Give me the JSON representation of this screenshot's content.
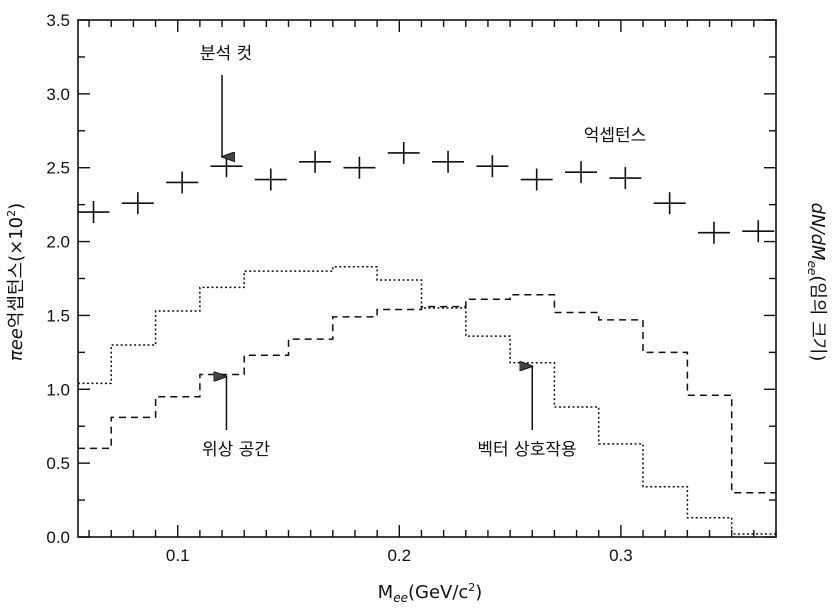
{
  "chart_data": {
    "type": "line",
    "title": "",
    "xlabel": "M",
    "xlabel_sub": "ee",
    "xlabel_unit": "(GeV/c",
    "xlabel_unit_sup": "2",
    "xlabel_unit_close": ")",
    "ylabel_left": {
      "pi": "π",
      "ee": "ee",
      "kr": "억셉턴스(×10",
      "sup": "2",
      "close": ")"
    },
    "ylabel_right": {
      "a": "dN/dM",
      "sub": "ee",
      "b": "(임의 크기)"
    },
    "xlim": [
      0.055,
      0.37
    ],
    "ylim": [
      0.0,
      3.5
    ],
    "xticks": [
      0.1,
      0.2,
      0.3
    ],
    "xtick_labels": [
      "0.1",
      "0.2",
      "0.3"
    ],
    "yticks": [
      0.0,
      0.5,
      1.0,
      1.5,
      2.0,
      2.5,
      3.0,
      3.5
    ],
    "ytick_labels": [
      "0.0",
      "0.5",
      "1.0",
      "1.5",
      "2.0",
      "2.5",
      "3.0",
      "3.5"
    ],
    "series": [
      {
        "name": "억셉턴스",
        "style": "crosses",
        "x": [
          0.062,
          0.082,
          0.102,
          0.122,
          0.142,
          0.162,
          0.182,
          0.202,
          0.222,
          0.242,
          0.262,
          0.282,
          0.302,
          0.322,
          0.342,
          0.362
        ],
        "y": [
          2.2,
          2.26,
          2.4,
          2.51,
          2.42,
          2.54,
          2.5,
          2.6,
          2.54,
          2.51,
          2.42,
          2.47,
          2.43,
          2.26,
          2.06,
          2.07
        ]
      },
      {
        "name": "위상 공간",
        "style": "dotted-step",
        "edges": [
          0.055,
          0.07,
          0.09,
          0.11,
          0.13,
          0.15,
          0.17,
          0.19,
          0.21,
          0.23,
          0.25,
          0.27,
          0.29,
          0.31,
          0.33,
          0.35,
          0.37
        ],
        "values": [
          1.04,
          1.3,
          1.53,
          1.69,
          1.8,
          1.8,
          1.83,
          1.74,
          1.55,
          1.36,
          1.18,
          0.88,
          0.63,
          0.34,
          0.13,
          0.02
        ]
      },
      {
        "name": "벡터 상호작용",
        "style": "dashed-step",
        "edges": [
          0.055,
          0.07,
          0.09,
          0.11,
          0.13,
          0.15,
          0.17,
          0.19,
          0.21,
          0.23,
          0.25,
          0.27,
          0.29,
          0.31,
          0.33,
          0.35,
          0.37
        ],
        "values": [
          0.6,
          0.81,
          0.95,
          1.1,
          1.23,
          1.34,
          1.49,
          1.54,
          1.56,
          1.61,
          1.64,
          1.52,
          1.47,
          1.25,
          0.96,
          0.3
        ]
      }
    ],
    "annotations": [
      {
        "text": "분석 컷",
        "arrow_to": [
          0.12,
          2.52
        ],
        "arrow_dir": "down"
      },
      {
        "text": "억셉턴스",
        "label_for": "crosses"
      },
      {
        "text": "위상 공간",
        "arrow_to": [
          0.122,
          1.1
        ],
        "arrow_dir": "up"
      },
      {
        "text": "벡터 상호작용",
        "arrow_to": [
          0.26,
          1.17
        ],
        "arrow_dir": "up"
      }
    ]
  }
}
